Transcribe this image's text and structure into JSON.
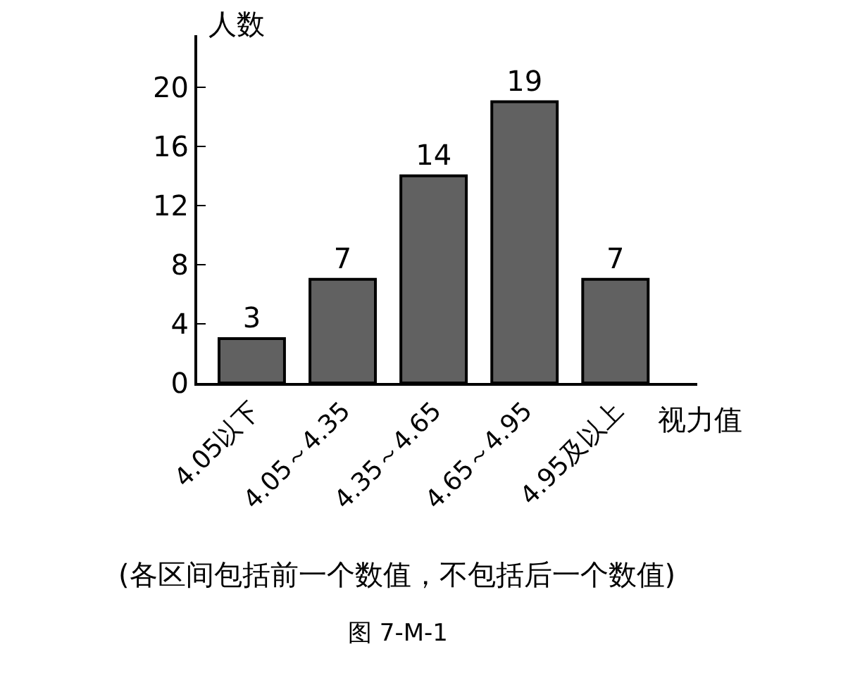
{
  "chart_data": {
    "type": "bar",
    "categories": [
      "4.05以下",
      "4.05～4.35",
      "4.35～4.65",
      "4.65～4.95",
      "4.95及以上"
    ],
    "values": [
      3,
      7,
      14,
      19,
      7
    ],
    "color": "#616161",
    "data_labels": true,
    "ylabel": "人数",
    "xlabel": "视力值",
    "ylim": [
      0,
      23.5
    ],
    "yticks": [
      0,
      4,
      8,
      12,
      16,
      20
    ],
    "annotations": [
      "(各区间包括前一个数值，不包括后一个数值)",
      "图 7-M-1"
    ]
  }
}
